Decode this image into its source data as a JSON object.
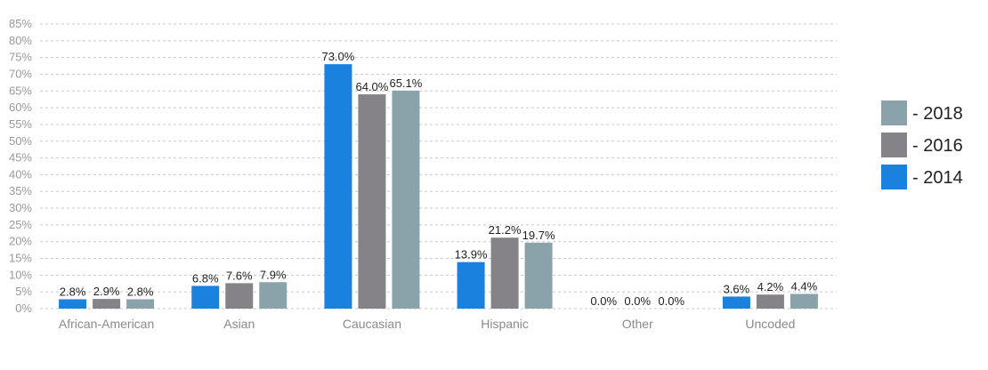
{
  "chart_data": {
    "type": "bar",
    "categories": [
      "African-American",
      "Asian",
      "Caucasian",
      "Hispanic",
      "Other",
      "Uncoded"
    ],
    "series": [
      {
        "name": "- 2014",
        "color": "#1a82de",
        "values": [
          2.8,
          6.8,
          73.0,
          13.9,
          0.0,
          3.6
        ],
        "labels": [
          "2.8%",
          "6.8%",
          "73.0%",
          "13.9%",
          "0.0%",
          "3.6%"
        ]
      },
      {
        "name": "- 2016",
        "color": "#858387",
        "values": [
          2.9,
          7.6,
          64.0,
          21.2,
          0.0,
          4.2
        ],
        "labels": [
          "2.9%",
          "7.6%",
          "64.0%",
          "21.2%",
          "0.0%",
          "4.2%"
        ]
      },
      {
        "name": "- 2018",
        "color": "#8aa3ab",
        "values": [
          2.8,
          7.9,
          65.1,
          19.7,
          0.0,
          4.4
        ],
        "labels": [
          "2.8%",
          "7.9%",
          "65.1%",
          "19.7%",
          "0.0%",
          "4.4%"
        ]
      }
    ],
    "y_ticks": [
      "0%",
      "5%",
      "10%",
      "15%",
      "20%",
      "25%",
      "30%",
      "35%",
      "40%",
      "45%",
      "50%",
      "55%",
      "60%",
      "65%",
      "70%",
      "75%",
      "80%",
      "85%"
    ],
    "ylim": [
      0,
      85
    ],
    "grid": true,
    "legend_placement": "right",
    "legend_order": [
      "- 2018",
      "- 2016",
      "- 2014"
    ]
  }
}
